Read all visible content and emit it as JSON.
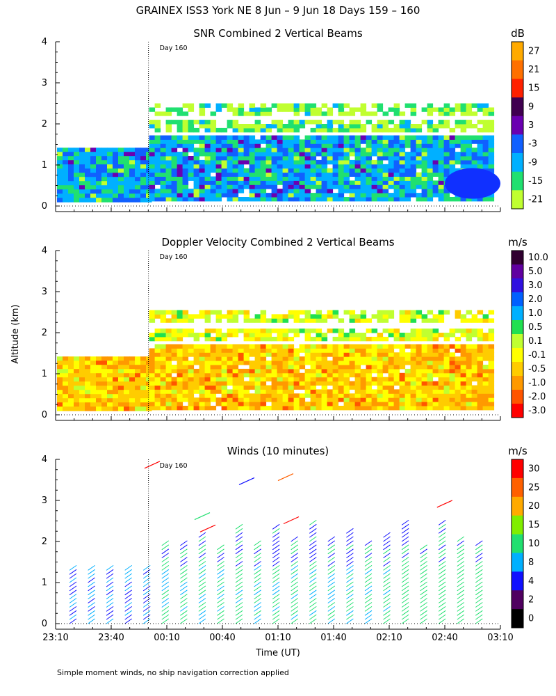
{
  "header": {
    "title": "GRAINEX ISS3 York NE   8 Jun –  9 Jun 18 Days 159 – 160"
  },
  "axes": {
    "ylabel": "Altitude (km)",
    "xlabel": "Time (UT)",
    "yticks": [
      "0",
      "1",
      "2",
      "3",
      "4"
    ],
    "xticks": [
      "23:10",
      "23:40",
      "00:10",
      "00:40",
      "01:10",
      "01:40",
      "02:10",
      "02:40",
      "03:10"
    ],
    "day_marker": "Day 160"
  },
  "footer": {
    "note": "Simple moment winds, no ship navigation correction applied"
  },
  "chart_data": [
    {
      "type": "heatmap",
      "title": "SNR Combined 2 Vertical Beams",
      "colorbar_unit": "dB",
      "colorbar_labels": [
        "27",
        "21",
        "15",
        "9",
        "3",
        "-3",
        "-9",
        "-15",
        "-21"
      ],
      "colors": [
        "#ffaa00",
        "#ff7000",
        "#ff2000",
        "#400050",
        "#6a00b0",
        "#1060ff",
        "#00b0ff",
        "#20e070",
        "#c0ff30"
      ],
      "x_range": [
        "23:10",
        "03:10"
      ],
      "ylim": [
        0,
        4
      ]
    },
    {
      "type": "heatmap",
      "title": "Doppler Velocity Combined 2 Vertical Beams",
      "colorbar_unit": "m/s",
      "colorbar_labels": [
        "10.0",
        "5.0",
        "3.0",
        "2.0",
        "1.0",
        "0.5",
        "0.1",
        "-0.1",
        "-0.5",
        "-1.0",
        "-2.0",
        "-3.0"
      ],
      "colors": [
        "#300030",
        "#6000a0",
        "#3010e0",
        "#0060ff",
        "#00b0ff",
        "#20e050",
        "#c0ff30",
        "#ffff00",
        "#ffcc00",
        "#ff9900",
        "#ff5500",
        "#ff0000"
      ],
      "x_range": [
        "23:10",
        "03:10"
      ],
      "ylim": [
        0,
        4
      ]
    },
    {
      "type": "scatter",
      "title": "Winds (10 minutes)",
      "colorbar_unit": "m/s",
      "colorbar_labels": [
        "30",
        "25",
        "20",
        "15",
        "10",
        "8",
        "4",
        "2",
        "0"
      ],
      "colors": [
        "#ff0000",
        "#ff6000",
        "#ffaa00",
        "#80ee00",
        "#20e070",
        "#00b0ff",
        "#1010ff",
        "#500060",
        "#000000"
      ],
      "x_range": [
        "23:10",
        "03:10"
      ],
      "ylim": [
        0,
        4
      ]
    }
  ]
}
